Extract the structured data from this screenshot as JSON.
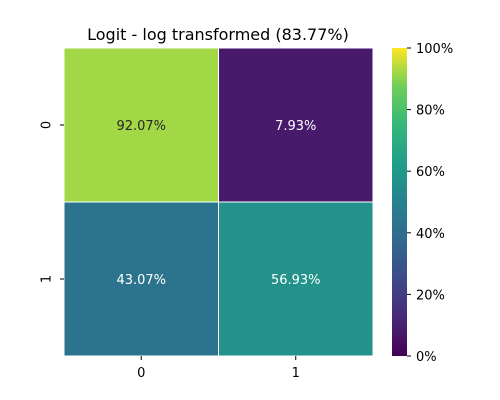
{
  "chart_data": {
    "type": "heatmap",
    "title": "Logit - log transformed (83.77%)",
    "xlabel": "",
    "ylabel": "",
    "x_categories": [
      "0",
      "1"
    ],
    "y_categories": [
      "0",
      "1"
    ],
    "values": [
      [
        92.07,
        7.93
      ],
      [
        43.07,
        56.93
      ]
    ],
    "cell_labels": [
      [
        "92.07%",
        "7.93%"
      ],
      [
        "43.07%",
        "56.93%"
      ]
    ],
    "colormap": "viridis",
    "colorbar": {
      "range": [
        0,
        100
      ],
      "ticks": [
        0,
        20,
        40,
        60,
        80,
        100
      ],
      "tick_labels": [
        "0%",
        "20%",
        "40%",
        "60%",
        "80%",
        "100%"
      ]
    },
    "grid": false,
    "cell_border_color": "#ffffff"
  }
}
